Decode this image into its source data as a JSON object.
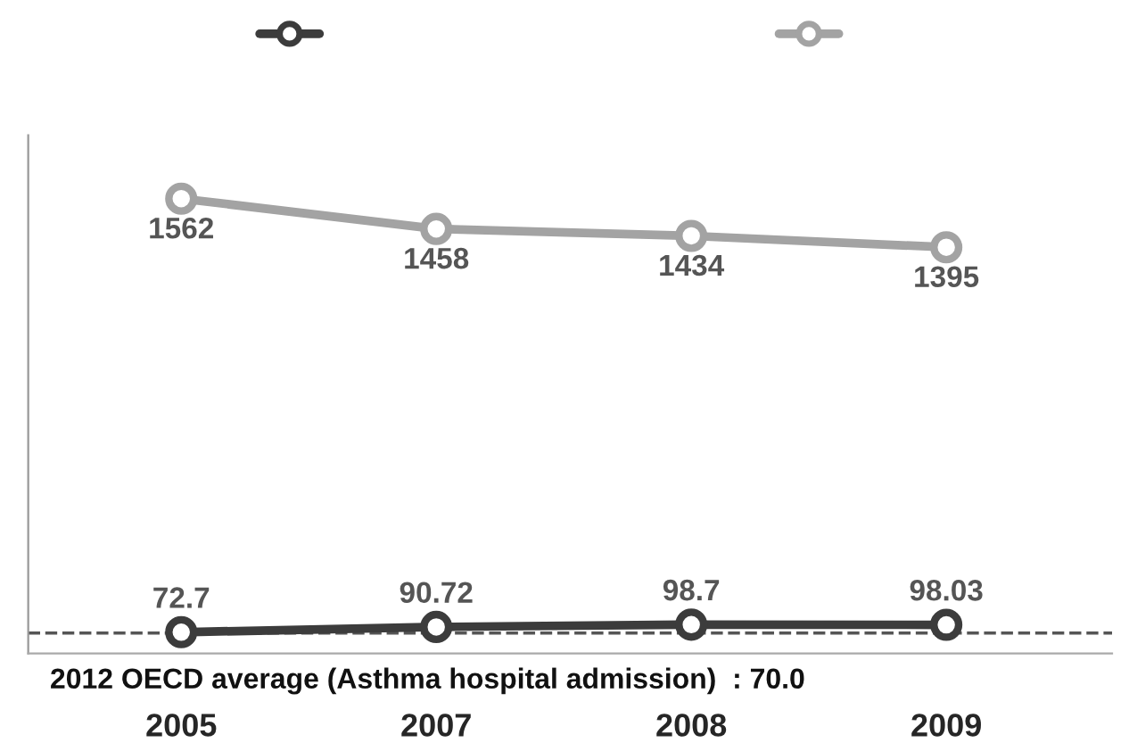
{
  "chart_data": {
    "type": "line",
    "categories": [
      "2005",
      "2007",
      "2008",
      "2009"
    ],
    "series": [
      {
        "color": "#3c3c3c",
        "values": [
          72.7,
          90.72,
          98.7,
          98.03
        ]
      },
      {
        "color": "#a3a3a3",
        "values": [
          1562,
          1458,
          1434,
          1395
        ]
      }
    ],
    "ylim": [
      0,
      1780
    ],
    "ref_lines": [
      {
        "axis": "y",
        "value": 70.0,
        "label": "2012 OECD average (Asthma hospital admission)  : 70.0",
        "color": "#555555",
        "line_style": "dashed"
      }
    ],
    "data_labels": true,
    "marker": "circle",
    "line_style": "solid",
    "grid": false
  }
}
